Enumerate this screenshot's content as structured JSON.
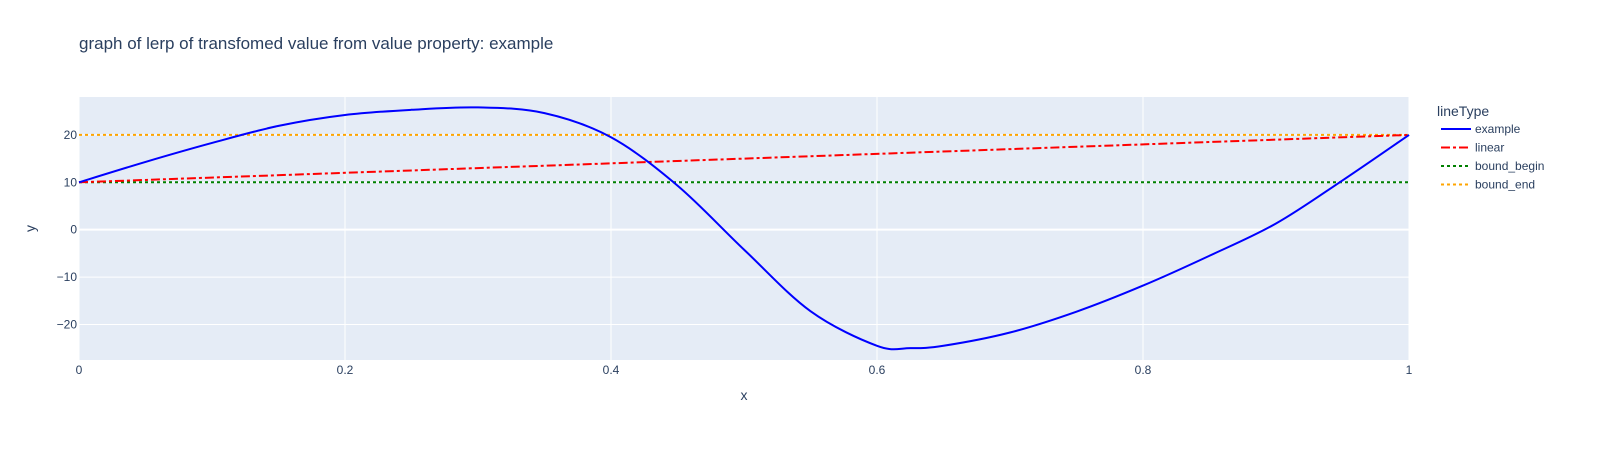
{
  "chart_data": {
    "type": "line",
    "title": "graph of lerp of transfomed value from value property:  example",
    "xlabel": "x",
    "ylabel": "y",
    "xlim": [
      0,
      1
    ],
    "ylim": [
      -27.5,
      28
    ],
    "x_ticks": [
      0,
      0.2,
      0.4,
      0.6,
      0.8,
      1
    ],
    "x_tick_labels": [
      "0",
      "0.2",
      "0.4",
      "0.6",
      "0.8",
      "1"
    ],
    "y_ticks": [
      -20,
      -10,
      0,
      10,
      20
    ],
    "y_tick_labels": [
      "−20",
      "−10",
      "0",
      "10",
      "20"
    ],
    "grid": true,
    "legend": {
      "title": "lineType",
      "placement": "right"
    },
    "series": [
      {
        "name": "example",
        "color": "#0000ff",
        "dash": "solid",
        "x": [
          0,
          0.05,
          0.1,
          0.15,
          0.2,
          0.25,
          0.3,
          0.35,
          0.4,
          0.45,
          0.5,
          0.55,
          0.6,
          0.625,
          0.65,
          0.7,
          0.75,
          0.8,
          0.85,
          0.9,
          0.95,
          1
        ],
        "y": [
          10,
          14.3,
          18.3,
          21.9,
          24.2,
          25.3,
          25.8,
          24.6,
          19.5,
          9.3,
          -4.2,
          -17.2,
          -24.5,
          -25,
          -24.5,
          -21.7,
          -17.3,
          -11.8,
          -5.5,
          1.3,
          10.4,
          20
        ]
      },
      {
        "name": "linear",
        "color": "#ff0000",
        "dash": "dashdot",
        "x": [
          0,
          1
        ],
        "y": [
          10,
          20
        ]
      },
      {
        "name": "bound_begin",
        "color": "#008000",
        "dash": "dot",
        "x": [
          0,
          1
        ],
        "y": [
          10,
          10
        ]
      },
      {
        "name": "bound_end",
        "color": "#ffa500",
        "dash": "dot",
        "x": [
          0,
          1
        ],
        "y": [
          20,
          20
        ]
      }
    ],
    "colors": {
      "plot_background": "#e5ecf6",
      "grid": "#ffffff",
      "text": "#2a3f5f"
    }
  }
}
